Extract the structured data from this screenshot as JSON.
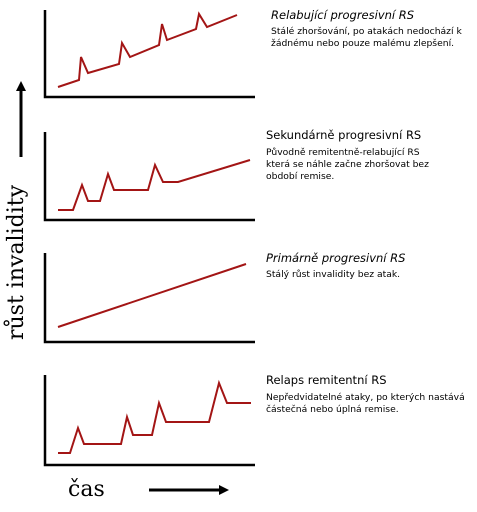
{
  "axes": {
    "y_label": "růst invalidity",
    "x_label": "čas"
  },
  "colors": {
    "line": "#a31515",
    "axis": "#000000"
  },
  "panels": [
    {
      "id": "relabujici",
      "title": "Relabující progresivní RS",
      "title_italic": true,
      "description": "Stálé zhoršování, po atakách nedochází k žádnému nebo pouze malému zlepšení."
    },
    {
      "id": "sekundarne",
      "title": "Sekundárně progresivní RS",
      "title_italic": false,
      "description": "Původně remitentně-relabující RS která se náhle začne zhoršovat bez období remise."
    },
    {
      "id": "primarne",
      "title": "Primárně progresivní RS",
      "title_italic": true,
      "description": "Stálý růst invalidity bez atak."
    },
    {
      "id": "relaps",
      "title": "Relaps remitentní RS",
      "title_italic": false,
      "description": "Nepředvidatelné ataky, po kterých nastává částečná nebo úplná remise."
    }
  ]
}
